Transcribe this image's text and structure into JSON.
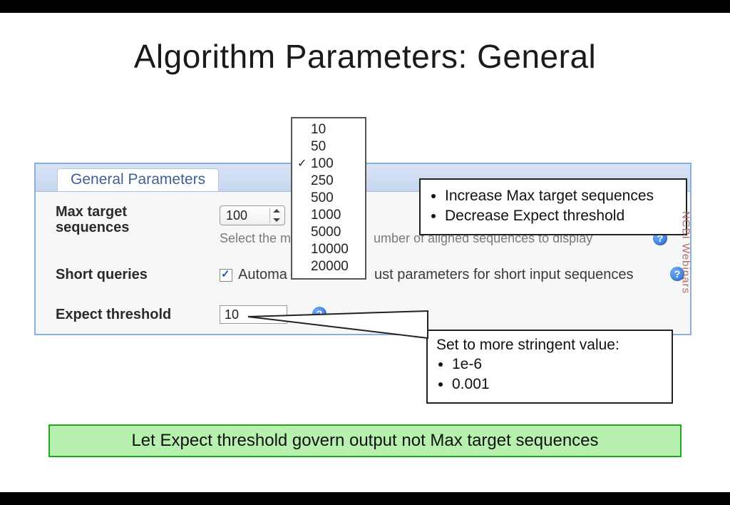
{
  "title": "Algorithm Parameters: General",
  "panel": {
    "tab_label": "General Parameters",
    "max_target": {
      "label": "Max target sequences",
      "selected": "100",
      "hint_left": "Select the m",
      "hint_right": "umber of aligned sequences to display"
    },
    "short_queries": {
      "label": "Short queries",
      "checked": true,
      "text_left": "Automa",
      "text_right": "ust parameters for short input sequences"
    },
    "expect": {
      "label": "Expect threshold",
      "value": "10"
    }
  },
  "dropdown": {
    "options": [
      "10",
      "50",
      "100",
      "250",
      "500",
      "1000",
      "5000",
      "10000",
      "20000"
    ],
    "checked_index": 2
  },
  "callout_top": {
    "items": [
      "Increase Max target sequences",
      "Decrease Expect threshold"
    ]
  },
  "callout_bottom": {
    "lead": "Set to more  stringent value:",
    "items": [
      "1e-6",
      "0.001"
    ]
  },
  "conclusion": "Let Expect threshold govern output not Max target sequences",
  "watermark": "NCBI Webinars",
  "colors": {
    "panel_border": "#8bb0e0",
    "header_grad_top": "#d9e4f5",
    "header_grad_bottom": "#c7d6ef",
    "tab_text": "#3f5f95",
    "hint": "#7a7a7a",
    "conclusion_bg": "#b8f0b0",
    "conclusion_border": "#1ea81e",
    "watermark": "#b16a6a"
  }
}
